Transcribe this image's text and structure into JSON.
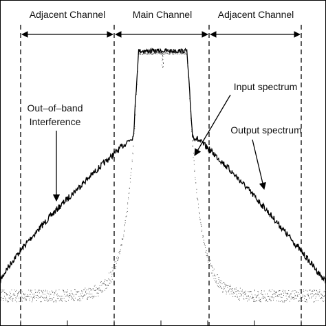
{
  "regions": {
    "left_adjacent": "Adjacent Channel",
    "main": "Main Channel",
    "right_adjacent": "Adjacent Channel"
  },
  "annotations": {
    "out_of_band_line1": "Out–of–band",
    "out_of_band_line2": "Interference",
    "input_spectrum": "Input spectrum",
    "output_spectrum": "Output spectrum"
  },
  "colors": {
    "output_trace": "#000000",
    "input_trace": "#3a3a3a",
    "guides": "#000000"
  }
}
